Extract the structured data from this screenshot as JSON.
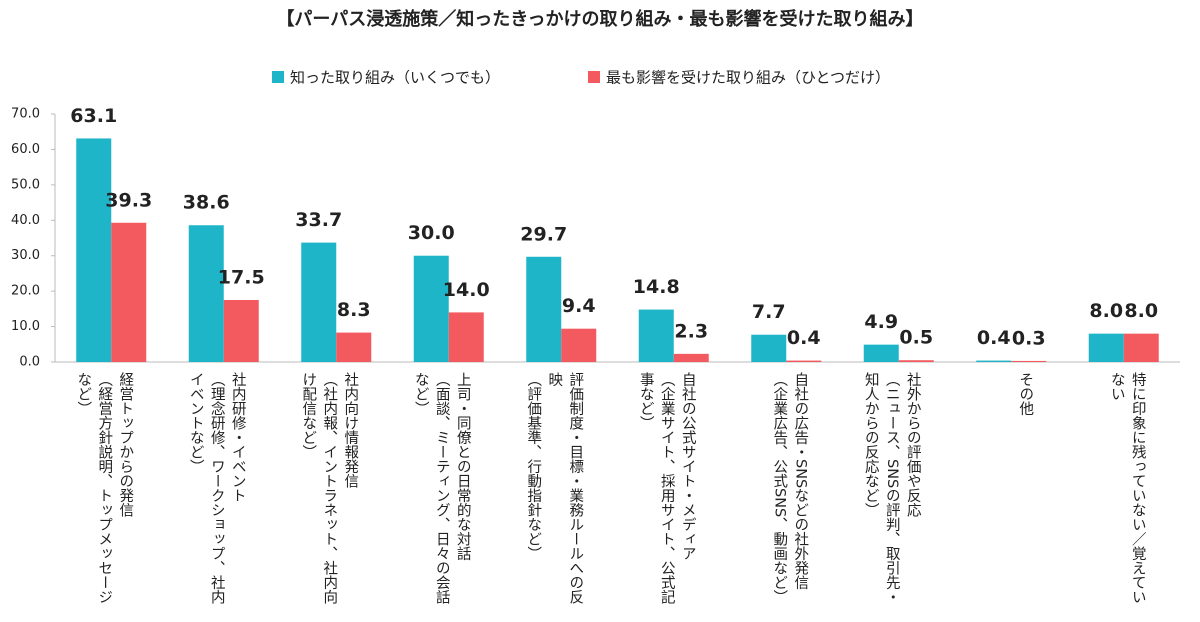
{
  "chart_data": {
    "type": "bar",
    "title": "【パーパス浸透施策／知ったきっかけの取り組み・最も影響を受けた取り組み】",
    "categories": [
      "経営トップからの発信\n（経営方針説明、トップメッセージなど）",
      "社内研修・イベント\n（理念研修、ワークショップ、社内イベントなど）",
      "社内向け情報発信\n（社内報、イントラネット、社内向け配信など）",
      "上司・同僚との日常的な対話\n（面談、ミーティング、日々の会話など）",
      "評価制度・目標・業務ルールへの反映\n（評価基準、行動指針など）",
      "自社の公式サイト・メディア\n（企業サイト、採用サイト、公式記事など）",
      "自社の広告・SNSなどの社外発信\n（企業広告、公式SNS、動画など）",
      "社外からの評価や反応\n（ニュース、SNSの評判、取引先・知人からの反応など）",
      "その他",
      "特に印象に残っていない／覚えていない"
    ],
    "series": [
      {
        "name": "知った取り組み（いくつでも）",
        "color": "#1fb5c8",
        "values": [
          63.1,
          38.6,
          33.7,
          30.0,
          29.7,
          14.8,
          7.7,
          4.9,
          0.4,
          8.0
        ],
        "value_labels": [
          "63.1",
          "38.6",
          "33.7",
          "30.0",
          "29.7",
          "14.8",
          "7.7",
          "4.9",
          "0.4",
          "8.0"
        ]
      },
      {
        "name": "最も影響を受けた取り組み（ひとつだけ）",
        "color": "#f25a60",
        "values": [
          39.3,
          17.5,
          8.3,
          14.0,
          9.4,
          2.3,
          0.4,
          0.5,
          0.3,
          8.0
        ],
        "value_labels": [
          "39.3",
          "17.5",
          "8.3",
          "14.0",
          "9.4",
          "2.3",
          "0.4",
          "0.5",
          "0.3",
          "8.0"
        ]
      }
    ],
    "ylim": [
      0,
      70
    ],
    "yticks": [
      {
        "value": 0,
        "label": "0.0"
      },
      {
        "value": 10,
        "label": "10.0"
      },
      {
        "value": 20,
        "label": "20.0"
      },
      {
        "value": 30,
        "label": "30.0"
      },
      {
        "value": 40,
        "label": "40.0"
      },
      {
        "value": 50,
        "label": "50.0"
      },
      {
        "value": 60,
        "label": "60.0"
      },
      {
        "value": 70,
        "label": "70.0"
      }
    ],
    "legend": "top"
  }
}
